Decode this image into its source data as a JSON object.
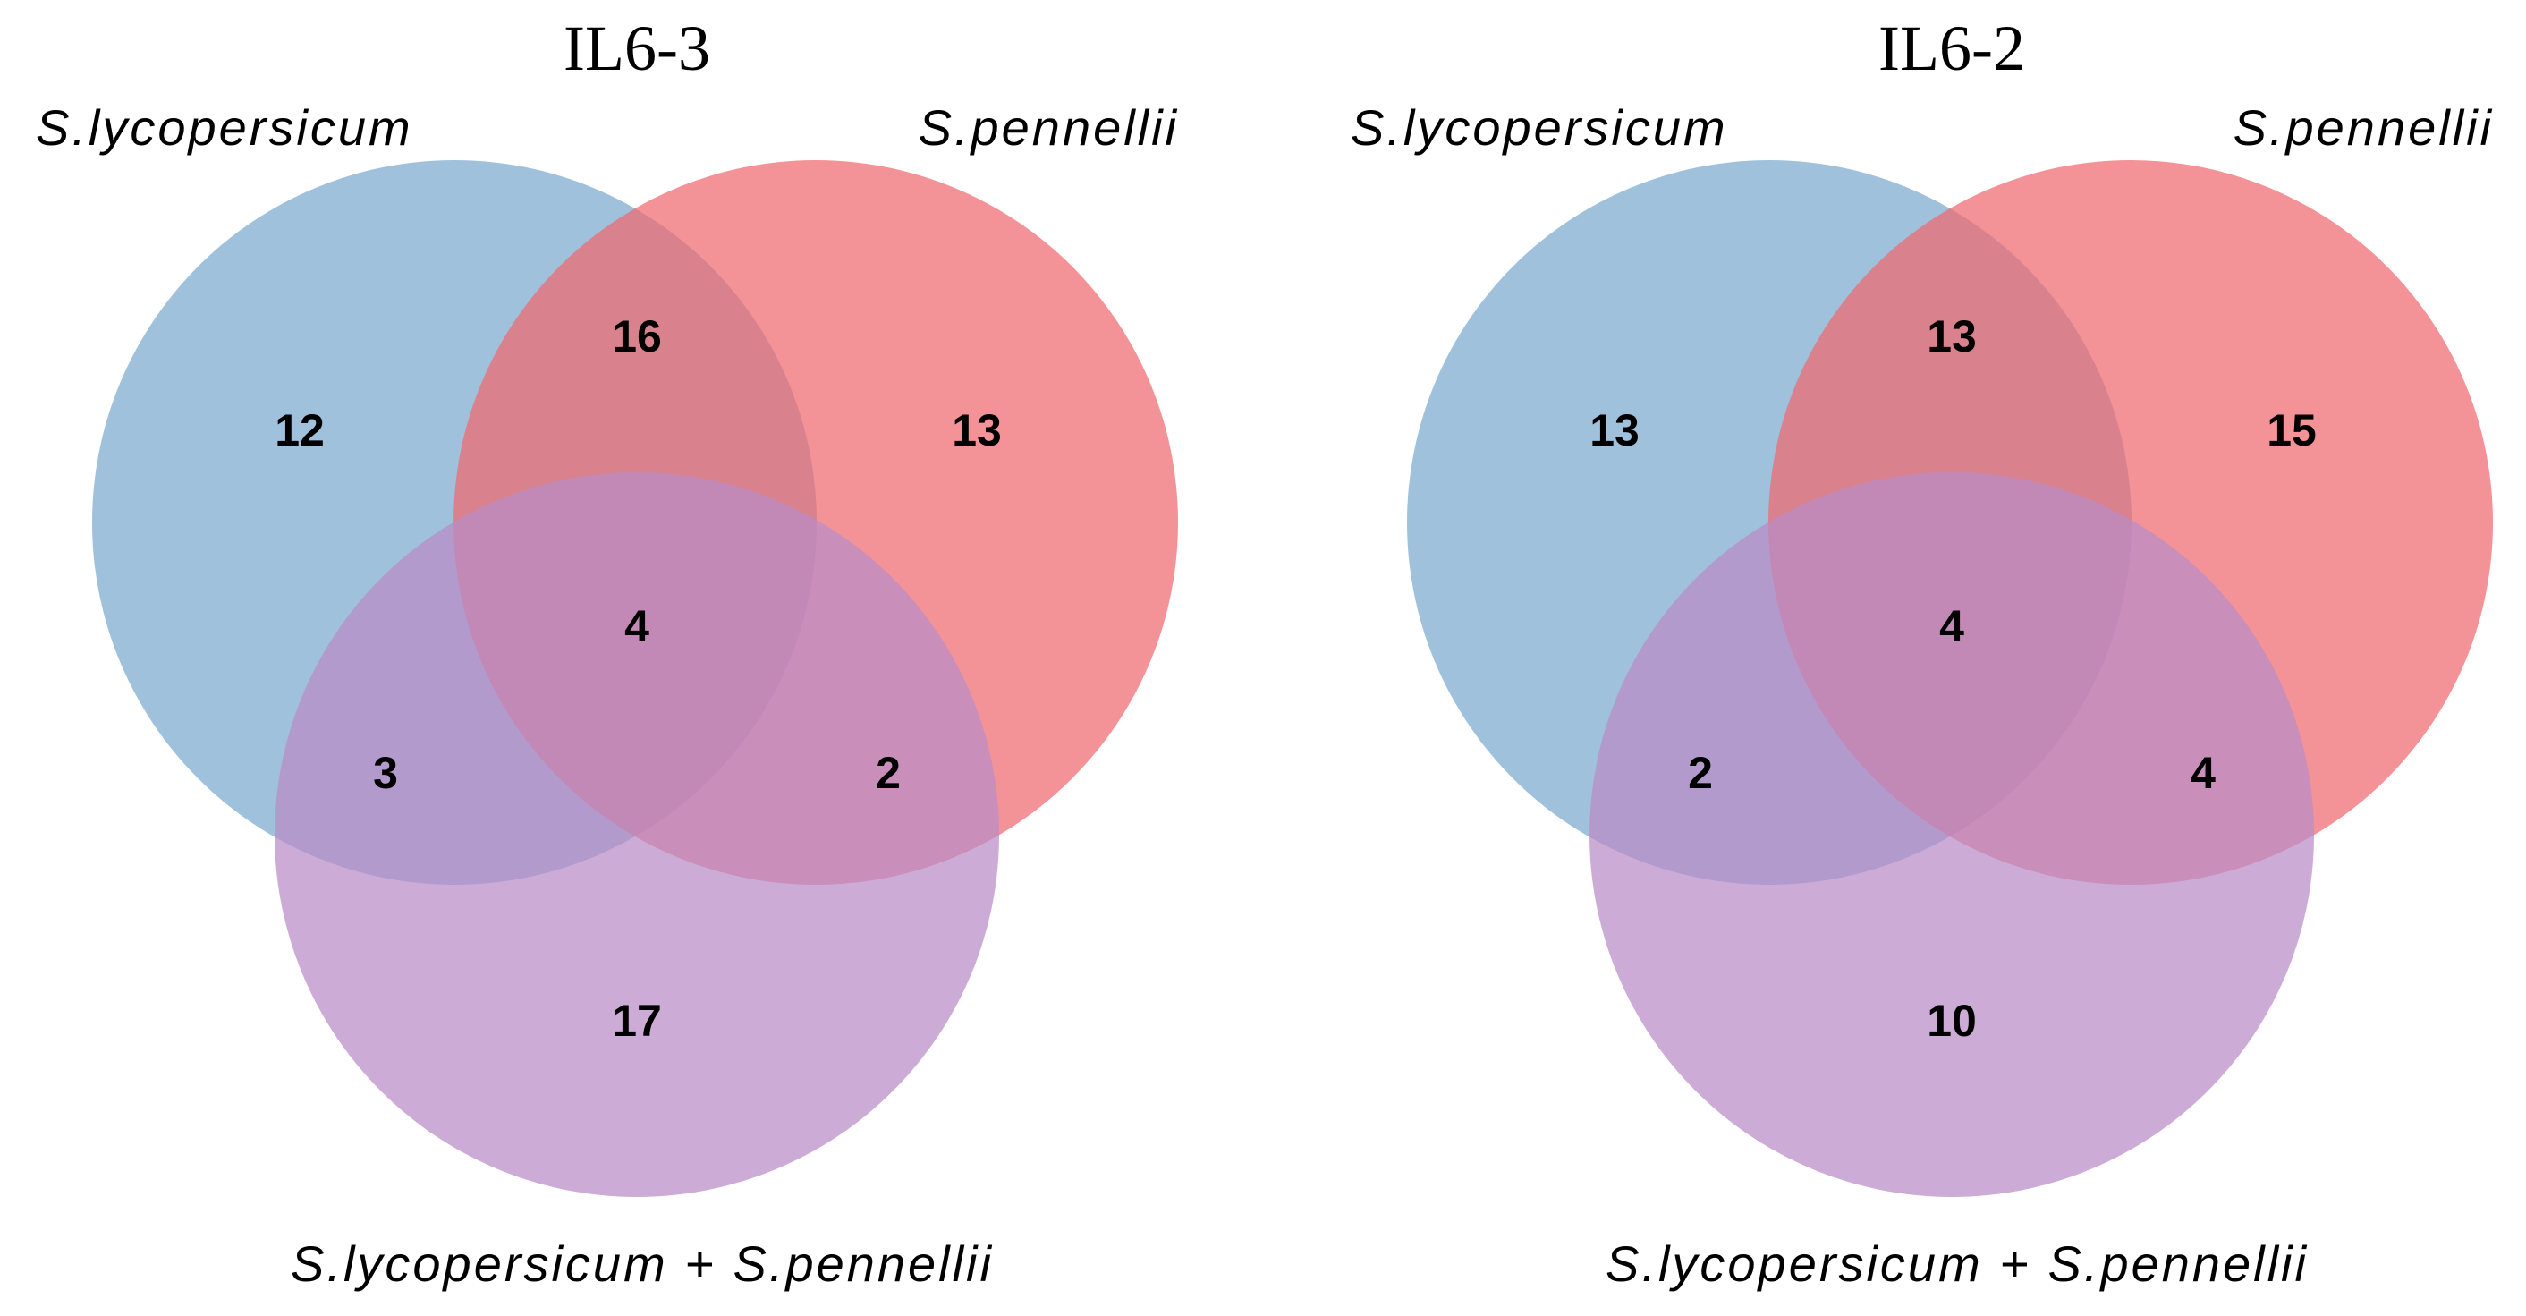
{
  "colors": {
    "set_a": "#7ba9cf",
    "set_b": "#ee6a70",
    "set_c": "#b98cc6",
    "background": "#ffffff"
  },
  "panels": [
    {
      "title": "IL6-3",
      "set_a_label": "S.lycopersicum",
      "set_b_label": "S.pennellii",
      "set_c_label": "S.lycopersicum + S.pennellii",
      "counts": {
        "a_only": "12",
        "b_only": "13",
        "c_only": "17",
        "ab": "16",
        "ac": "3",
        "bc": "2",
        "abc": "4"
      }
    },
    {
      "title": "IL6-2",
      "set_a_label": "S.lycopersicum",
      "set_b_label": "S.pennellii",
      "set_c_label": "S.lycopersicum + S.pennellii",
      "counts": {
        "a_only": "13",
        "b_only": "15",
        "c_only": "10",
        "ab": "13",
        "ac": "2",
        "bc": "4",
        "abc": "4"
      }
    }
  ]
}
